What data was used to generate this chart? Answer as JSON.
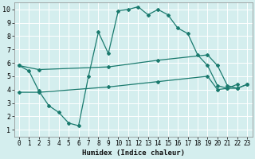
{
  "xlabel": "Humidex (Indice chaleur)",
  "bg_color": "#d4eeee",
  "grid_color": "#b8d8d8",
  "line_color": "#1a7a6e",
  "xlim": [
    -0.5,
    23.5
  ],
  "ylim": [
    0.5,
    10.5
  ],
  "xticks": [
    0,
    1,
    2,
    3,
    4,
    5,
    6,
    7,
    8,
    9,
    10,
    11,
    12,
    13,
    14,
    15,
    16,
    17,
    18,
    19,
    20,
    21,
    22,
    23
  ],
  "yticks": [
    1,
    2,
    3,
    4,
    5,
    6,
    7,
    8,
    9,
    10
  ],
  "line1_x": [
    0,
    1,
    2,
    3,
    4,
    5,
    6,
    7,
    8,
    9,
    10,
    11,
    12,
    13,
    14,
    15,
    16,
    17,
    18,
    19,
    20,
    21,
    22
  ],
  "line1_y": [
    5.8,
    5.4,
    3.9,
    2.8,
    2.3,
    1.5,
    1.3,
    5.0,
    8.3,
    6.7,
    9.9,
    10.0,
    10.2,
    9.6,
    10.0,
    9.6,
    8.6,
    8.2,
    6.6,
    5.8,
    4.3,
    4.1,
    4.4
  ],
  "line2_x": [
    0,
    2,
    9,
    14,
    19,
    20,
    21,
    22,
    23
  ],
  "line2_y": [
    5.8,
    5.5,
    5.7,
    6.2,
    6.6,
    5.8,
    4.3,
    4.1,
    4.4
  ],
  "line3_x": [
    0,
    2,
    9,
    14,
    19,
    20,
    21,
    22,
    23
  ],
  "line3_y": [
    3.8,
    3.8,
    4.2,
    4.6,
    5.0,
    4.0,
    4.1,
    4.1,
    4.4
  ]
}
